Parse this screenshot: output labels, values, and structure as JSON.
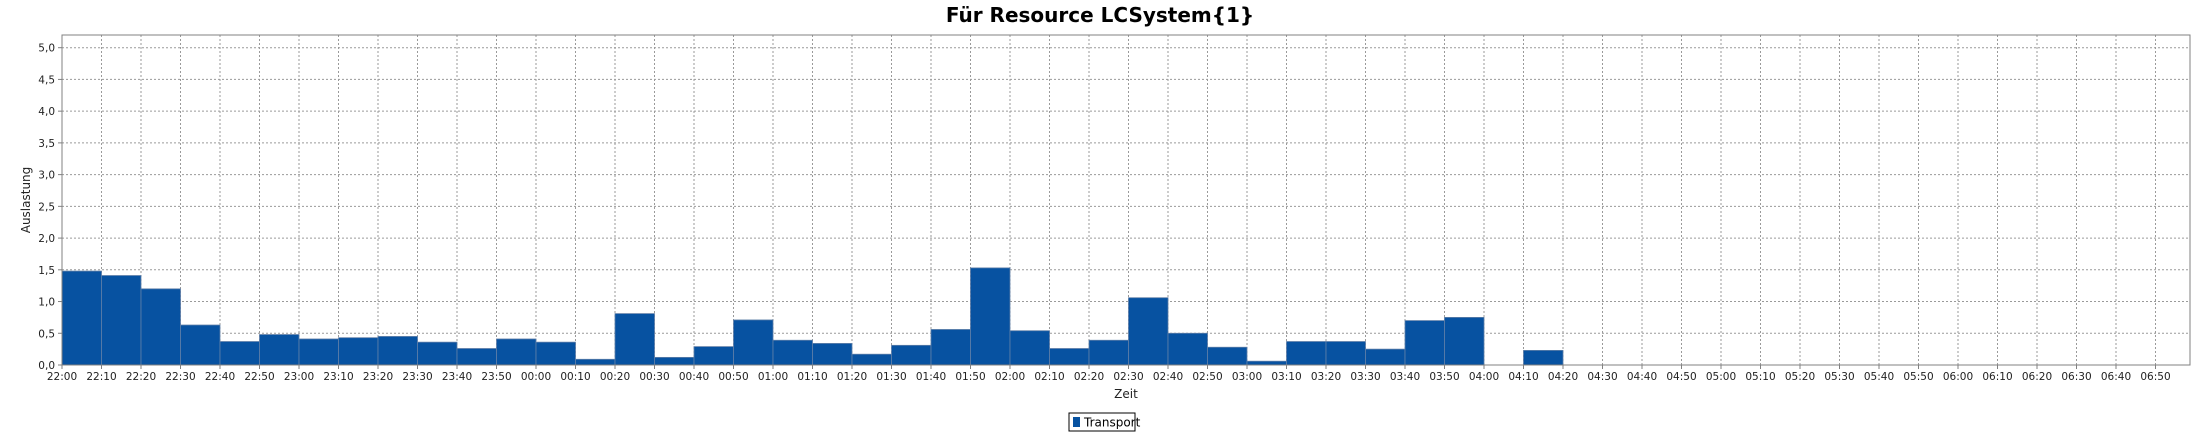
{
  "chart_data": {
    "type": "bar",
    "title": "Für Resource LCSystem{1}",
    "xlabel": "Zeit",
    "ylabel": "Auslastung",
    "ylim": [
      0,
      5.2
    ],
    "y_ticks": [
      "0,0",
      "0,5",
      "1,0",
      "1,5",
      "2,0",
      "2,5",
      "3,0",
      "3,5",
      "4,0",
      "4,5",
      "5,0"
    ],
    "categories": [
      "22:00",
      "22:10",
      "22:20",
      "22:30",
      "22:40",
      "22:50",
      "23:00",
      "23:10",
      "23:20",
      "23:30",
      "23:40",
      "23:50",
      "00:00",
      "00:10",
      "00:20",
      "00:30",
      "00:40",
      "00:50",
      "01:00",
      "01:10",
      "01:20",
      "01:30",
      "01:40",
      "01:50",
      "02:00",
      "02:10",
      "02:20",
      "02:30",
      "02:40",
      "02:50",
      "03:00",
      "03:10",
      "03:20",
      "03:30",
      "03:40",
      "03:50",
      "04:00",
      "04:10",
      "04:20",
      "04:30",
      "04:40",
      "04:50",
      "05:00",
      "05:10",
      "05:20",
      "05:30",
      "05:40",
      "05:50",
      "06:00",
      "06:10",
      "06:20",
      "06:30",
      "06:40",
      "06:50"
    ],
    "series": [
      {
        "name": "Transport",
        "color": "#0752A1",
        "values": [
          1.48,
          1.41,
          1.2,
          0.63,
          0.37,
          0.48,
          0.41,
          0.43,
          0.45,
          0.36,
          0.26,
          0.41,
          0.36,
          0.09,
          0.81,
          0.12,
          0.29,
          0.71,
          0.39,
          0.34,
          0.17,
          0.31,
          0.56,
          1.53,
          0.54,
          0.26,
          0.39,
          1.06,
          0.5,
          0.28,
          0.06,
          0.37,
          0.37,
          0.25,
          0.7,
          0.75,
          null,
          0.23,
          null,
          null,
          null,
          null,
          null,
          null,
          null,
          null,
          null,
          null,
          null,
          null,
          null,
          null,
          null,
          null
        ]
      }
    ],
    "grid": true,
    "grid_style": "dotted",
    "legend_position": "bottom-center"
  }
}
